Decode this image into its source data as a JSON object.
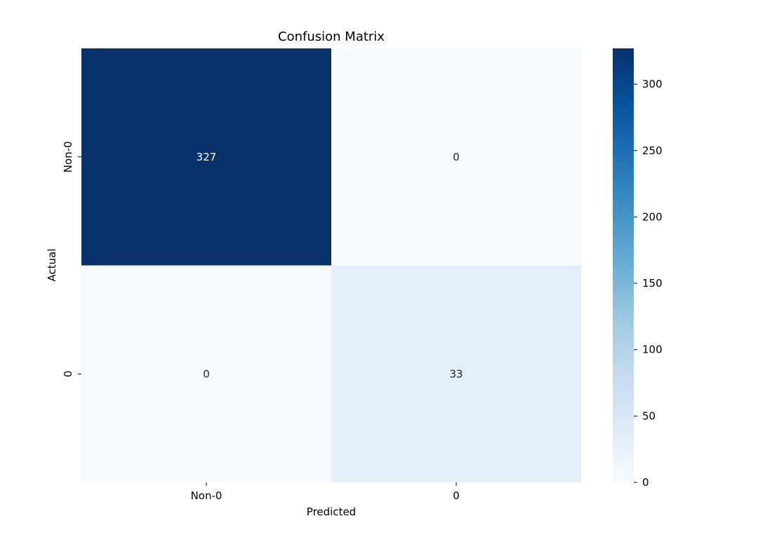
{
  "chart_data": {
    "type": "heatmap",
    "title": "Confusion Matrix",
    "xlabel": "Predicted",
    "ylabel": "Actual",
    "x_categories": [
      "Non-0",
      "0"
    ],
    "y_categories": [
      "Non-0",
      "0"
    ],
    "values": [
      [
        327,
        0
      ],
      [
        0,
        33
      ]
    ],
    "colormap": "Blues",
    "colorbar": {
      "min": 0,
      "max": 327,
      "ticks": [
        0,
        50,
        100,
        150,
        200,
        250,
        300
      ]
    },
    "annotation_colors": {
      "light": "#ffffff",
      "dark": "#262626"
    }
  }
}
